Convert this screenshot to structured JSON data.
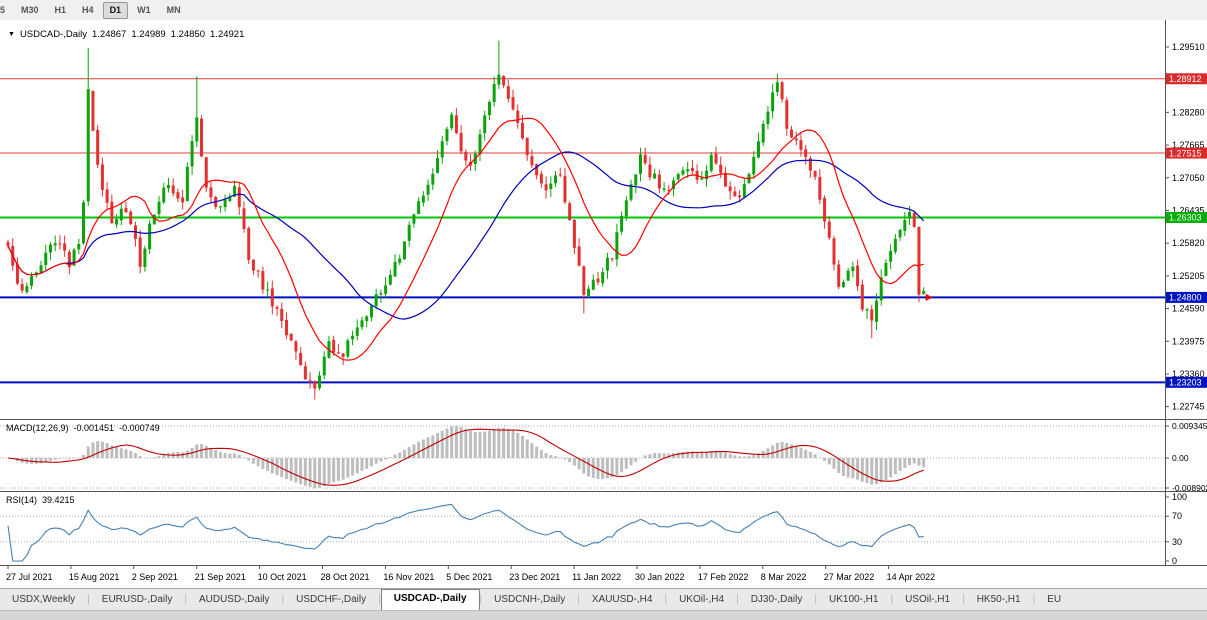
{
  "icons": {
    "triangle": "▼"
  },
  "toolbar": {
    "buttons": [
      {
        "label": "5",
        "active": false
      },
      {
        "label": "M30",
        "active": false
      },
      {
        "label": "H1",
        "active": false
      },
      {
        "label": "H4",
        "active": false
      },
      {
        "label": "D1",
        "active": true
      },
      {
        "label": "W1",
        "active": false
      },
      {
        "label": "MN",
        "active": false
      }
    ]
  },
  "chart": {
    "symbol": "USDCAD-,Daily",
    "ohlc": {
      "open": "1.24867",
      "high": "1.24989",
      "low": "1.24850",
      "close": "1.24921"
    },
    "price_scale_labels": [
      "1.29510",
      "1.28895",
      "1.28280",
      "1.27665",
      "1.27050",
      "1.26435",
      "1.25820",
      "1.25205",
      "1.24590",
      "1.23975",
      "1.23360",
      "1.22745"
    ],
    "hlines": [
      {
        "price": 1.28912,
        "label": "1.28912",
        "color": "#e23b3b",
        "box": "#d92b2b",
        "width": 1
      },
      {
        "price": 1.27515,
        "label": "1.27515",
        "color": "#e23b3b",
        "box": "#d92b2b",
        "width": 1
      },
      {
        "price": 1.26303,
        "label": "1.26303",
        "color": "#00c400",
        "box": "#00ad00",
        "width": 2
      },
      {
        "price": 1.248,
        "label": "1.24800",
        "color": "#0013c2",
        "box": "#0013c2",
        "width": 2
      },
      {
        "price": 1.23203,
        "label": "1.23203",
        "color": "#0013c2",
        "box": "#0013c2",
        "width": 2
      }
    ],
    "date_labels": [
      "27 Jul 2021",
      "15 Aug 2021",
      "2 Sep 2021",
      "21 Sep 2021",
      "10 Oct 2021",
      "28 Oct 2021",
      "16 Nov 2021",
      "5 Dec 2021",
      "23 Dec 2021",
      "11 Jan 2022",
      "30 Jan 2022",
      "17 Feb 2022",
      "8 Mar 2022",
      "27 Mar 2022",
      "14 Apr 2022"
    ]
  },
  "indicators": {
    "macd": {
      "label": "MACD(12,26,9)",
      "value_main": "-0.001451",
      "value_signal": "-0.000749",
      "scale_top": "0.009345",
      "scale_zero": "0.00",
      "scale_bottom": "-0.008902"
    },
    "rsi": {
      "label": "RSI(14)",
      "value": "39.4215",
      "scale": [
        100,
        70,
        30,
        0
      ],
      "levels": [
        70,
        30
      ]
    }
  },
  "tabs": [
    {
      "label": "USDX,Weekly",
      "active": false
    },
    {
      "label": "EURUSD-,Daily",
      "active": false
    },
    {
      "label": "AUDUSD-,Daily",
      "active": false
    },
    {
      "label": "USDCHF-,Daily",
      "active": false
    },
    {
      "label": "USDCAD-,Daily",
      "active": true
    },
    {
      "label": "USDCNH-,Daily",
      "active": false
    },
    {
      "label": "XAUUSD-,H4",
      "active": false
    },
    {
      "label": "UKOil-,H4",
      "active": false
    },
    {
      "label": "DJ30-,Daily",
      "active": false
    },
    {
      "label": "UK100-,H1",
      "active": false
    },
    {
      "label": "USOil-,H1",
      "active": false
    },
    {
      "label": "HK50-,H1",
      "active": false
    },
    {
      "label": "EU",
      "active": false
    }
  ],
  "chart_data": {
    "type": "candlestick",
    "symbol": "USDCAD",
    "timeframe": "Daily",
    "title": "USDCAD-,Daily 1.24867 1.24989 1.24850 1.24921",
    "ylim": [
      1.22532,
      1.29867
    ],
    "bar_count": 195,
    "close_anchors": [
      [
        0,
        1.257
      ],
      [
        3,
        1.2482
      ],
      [
        6,
        1.2528
      ],
      [
        10,
        1.2585
      ],
      [
        13,
        1.2545
      ],
      [
        15,
        1.2585
      ],
      [
        16,
        1.266
      ],
      [
        17,
        1.2862
      ],
      [
        19,
        1.272
      ],
      [
        22,
        1.2625
      ],
      [
        25,
        1.2648
      ],
      [
        28,
        1.2545
      ],
      [
        31,
        1.2645
      ],
      [
        34,
        1.2692
      ],
      [
        37,
        1.2668
      ],
      [
        40,
        1.2818
      ],
      [
        42,
        1.268
      ],
      [
        45,
        1.2645
      ],
      [
        48,
        1.2692
      ],
      [
        51,
        1.2555
      ],
      [
        54,
        1.2502
      ],
      [
        57,
        1.2455
      ],
      [
        60,
        1.24
      ],
      [
        63,
        1.2332
      ],
      [
        65,
        1.2302
      ],
      [
        68,
        1.2388
      ],
      [
        71,
        1.2368
      ],
      [
        74,
        1.2432
      ],
      [
        77,
        1.2465
      ],
      [
        80,
        1.2508
      ],
      [
        83,
        1.2562
      ],
      [
        86,
        1.2632
      ],
      [
        89,
        1.2688
      ],
      [
        92,
        1.2768
      ],
      [
        94,
        1.2828
      ],
      [
        96,
        1.2748
      ],
      [
        98,
        1.2722
      ],
      [
        101,
        1.2832
      ],
      [
        104,
        1.2908
      ],
      [
        106,
        1.2858
      ],
      [
        108,
        1.2808
      ],
      [
        111,
        1.2732
      ],
      [
        114,
        1.2682
      ],
      [
        117,
        1.2708
      ],
      [
        120,
        1.2578
      ],
      [
        122,
        1.2492
      ],
      [
        125,
        1.2518
      ],
      [
        128,
        1.2562
      ],
      [
        131,
        1.2658
      ],
      [
        134,
        1.2742
      ],
      [
        137,
        1.2702
      ],
      [
        140,
        1.2672
      ],
      [
        143,
        1.2725
      ],
      [
        146,
        1.2698
      ],
      [
        149,
        1.2742
      ],
      [
        152,
        1.2692
      ],
      [
        155,
        1.2658
      ],
      [
        158,
        1.2748
      ],
      [
        161,
        1.2838
      ],
      [
        163,
        1.2878
      ],
      [
        165,
        1.2808
      ],
      [
        168,
        1.2758
      ],
      [
        171,
        1.2698
      ],
      [
        174,
        1.2582
      ],
      [
        176,
        1.2502
      ],
      [
        179,
        1.2535
      ],
      [
        181,
        1.2462
      ],
      [
        183,
        1.2435
      ],
      [
        185,
        1.2508
      ],
      [
        187,
        1.2568
      ],
      [
        189,
        1.2618
      ],
      [
        191,
        1.2632
      ],
      [
        192,
        1.2605
      ],
      [
        193,
        1.2487
      ],
      [
        194,
        1.24921
      ]
    ],
    "extremes": [
      {
        "i": 17,
        "high": 1.2949
      },
      {
        "i": 40,
        "high": 1.2896
      },
      {
        "i": 104,
        "high": 1.2963
      },
      {
        "i": 163,
        "high": 1.2901
      },
      {
        "i": 65,
        "low": 1.2288
      },
      {
        "i": 122,
        "low": 1.245
      },
      {
        "i": 183,
        "low": 1.2403
      }
    ],
    "last_bar": {
      "open": 1.24867,
      "high": 1.24989,
      "low": 1.2485,
      "close": 1.24921
    },
    "ma_fast_period": 13,
    "ma_slow_period": 34,
    "macd_params": [
      12,
      26,
      9
    ],
    "macd_range": [
      -0.008902,
      0.009345
    ],
    "rsi_period": 14,
    "rsi_last": 39.4215,
    "colors": {
      "up": "#0ca30a",
      "down": "#e33030",
      "ma_fast": "#ff0000",
      "ma_slow": "#0000b8",
      "macd_hist": "#bdbdbd",
      "macd_signal": "#c00000",
      "rsi": "#4682b4",
      "arrow": "#e00000"
    }
  }
}
